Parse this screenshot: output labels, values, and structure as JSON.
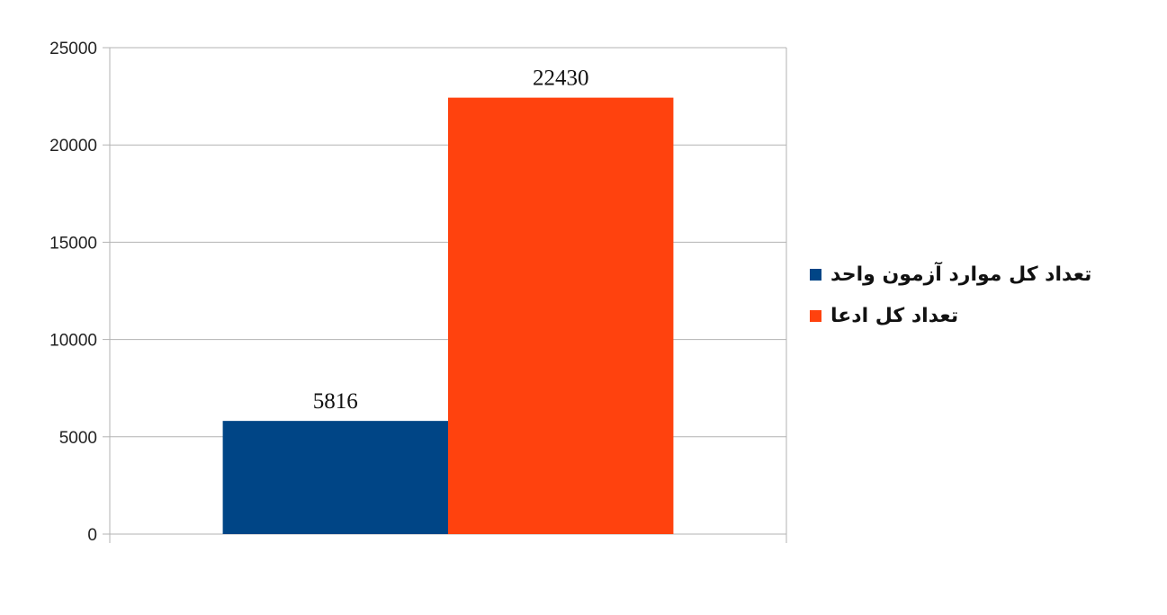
{
  "chart_data": {
    "type": "bar",
    "title": "",
    "xlabel": "",
    "ylabel": "",
    "categories": [
      ""
    ],
    "ylim": [
      0,
      25000
    ],
    "yticks": [
      0,
      5000,
      10000,
      15000,
      20000,
      25000
    ],
    "grid": true,
    "legend_position": "right",
    "series": [
      {
        "name": "تعداد کل موارد آزمون واحد",
        "values": [
          5816
        ],
        "label": "5816",
        "color": "#004586"
      },
      {
        "name": "تعداد کل ادعا",
        "values": [
          22430
        ],
        "label": "22430",
        "color": "#ff420e"
      }
    ]
  }
}
